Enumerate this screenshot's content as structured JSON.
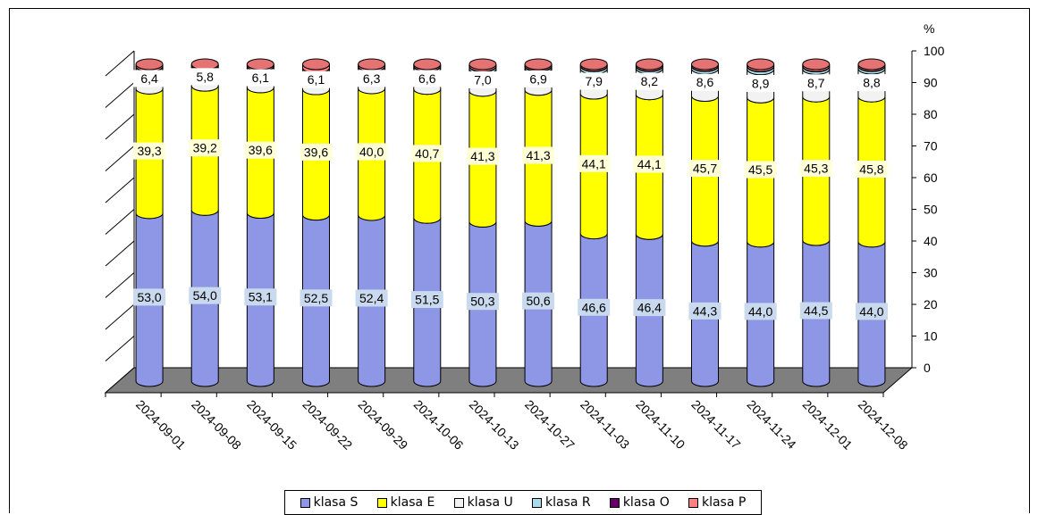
{
  "chart_data": {
    "type": "bar",
    "stacked": true,
    "style": "3d-cylinder",
    "title": "",
    "xlabel": "",
    "ylabel": "%",
    "ylim": [
      0,
      100
    ],
    "yticks": [
      0,
      10,
      20,
      30,
      40,
      50,
      60,
      70,
      80,
      90,
      100
    ],
    "categories": [
      "2024-09-01",
      "2024-09-08",
      "2024-09-15",
      "2024-09-22",
      "2024-09-29",
      "2024-10-06",
      "2024-10-13",
      "2024-10-27",
      "2024-11-03",
      "2024-11-10",
      "2024-11-17",
      "2024-11-24",
      "2024-12-01",
      "2024-12-08"
    ],
    "series": [
      {
        "name": "klasa S",
        "color": "#8e96e6",
        "values": [
          53.0,
          54.0,
          53.1,
          52.5,
          52.4,
          51.5,
          50.3,
          50.6,
          46.6,
          46.4,
          44.3,
          44.0,
          44.5,
          44.0
        ],
        "labels": [
          "53,0",
          "54,0",
          "53,1",
          "52,5",
          "52,4",
          "51,5",
          "50,3",
          "50,6",
          "46,6",
          "46,4",
          "44,3",
          "44,0",
          "44,5",
          "44,0"
        ]
      },
      {
        "name": "klasa E",
        "color": "#ffff00",
        "values": [
          39.3,
          39.2,
          39.6,
          39.6,
          40.0,
          40.7,
          41.3,
          41.3,
          44.1,
          44.1,
          45.7,
          45.5,
          45.3,
          45.8
        ],
        "labels": [
          "39,3",
          "39,2",
          "39,6",
          "39,6",
          "40,0",
          "40,7",
          "41,3",
          "41,3",
          "44,1",
          "44,1",
          "45,7",
          "45,5",
          "45,3",
          "45,8"
        ]
      },
      {
        "name": "klasa U",
        "color": "#f2f2f2",
        "values": [
          6.4,
          5.8,
          6.1,
          6.1,
          6.3,
          6.6,
          7.0,
          6.9,
          7.9,
          8.2,
          8.6,
          8.9,
          8.7,
          8.8
        ],
        "labels": [
          "6,4",
          "5,8",
          "6,1",
          "6,1",
          "6,3",
          "6,6",
          "7,0",
          "6,9",
          "7,9",
          "8,2",
          "8,6",
          "8,9",
          "8,7",
          "8,8"
        ]
      },
      {
        "name": "klasa R",
        "color": "#a8dcea",
        "values": [
          0.6,
          0.5,
          0.6,
          0.6,
          0.6,
          0.6,
          0.7,
          0.6,
          0.8,
          0.7,
          0.8,
          0.9,
          0.8,
          0.8
        ]
      },
      {
        "name": "klasa O",
        "color": "#660066",
        "values": [
          0.1,
          0.1,
          0.1,
          0.1,
          0.1,
          0.1,
          0.1,
          0.1,
          0.1,
          0.1,
          0.1,
          0.1,
          0.1,
          0.1
        ]
      },
      {
        "name": "klasa P",
        "color": "#ff8080",
        "values": [
          0.6,
          0.4,
          0.5,
          1.1,
          0.6,
          0.5,
          0.6,
          0.5,
          0.5,
          0.5,
          0.5,
          0.6,
          0.6,
          0.5
        ]
      }
    ],
    "legend_position": "bottom",
    "grid": false
  }
}
